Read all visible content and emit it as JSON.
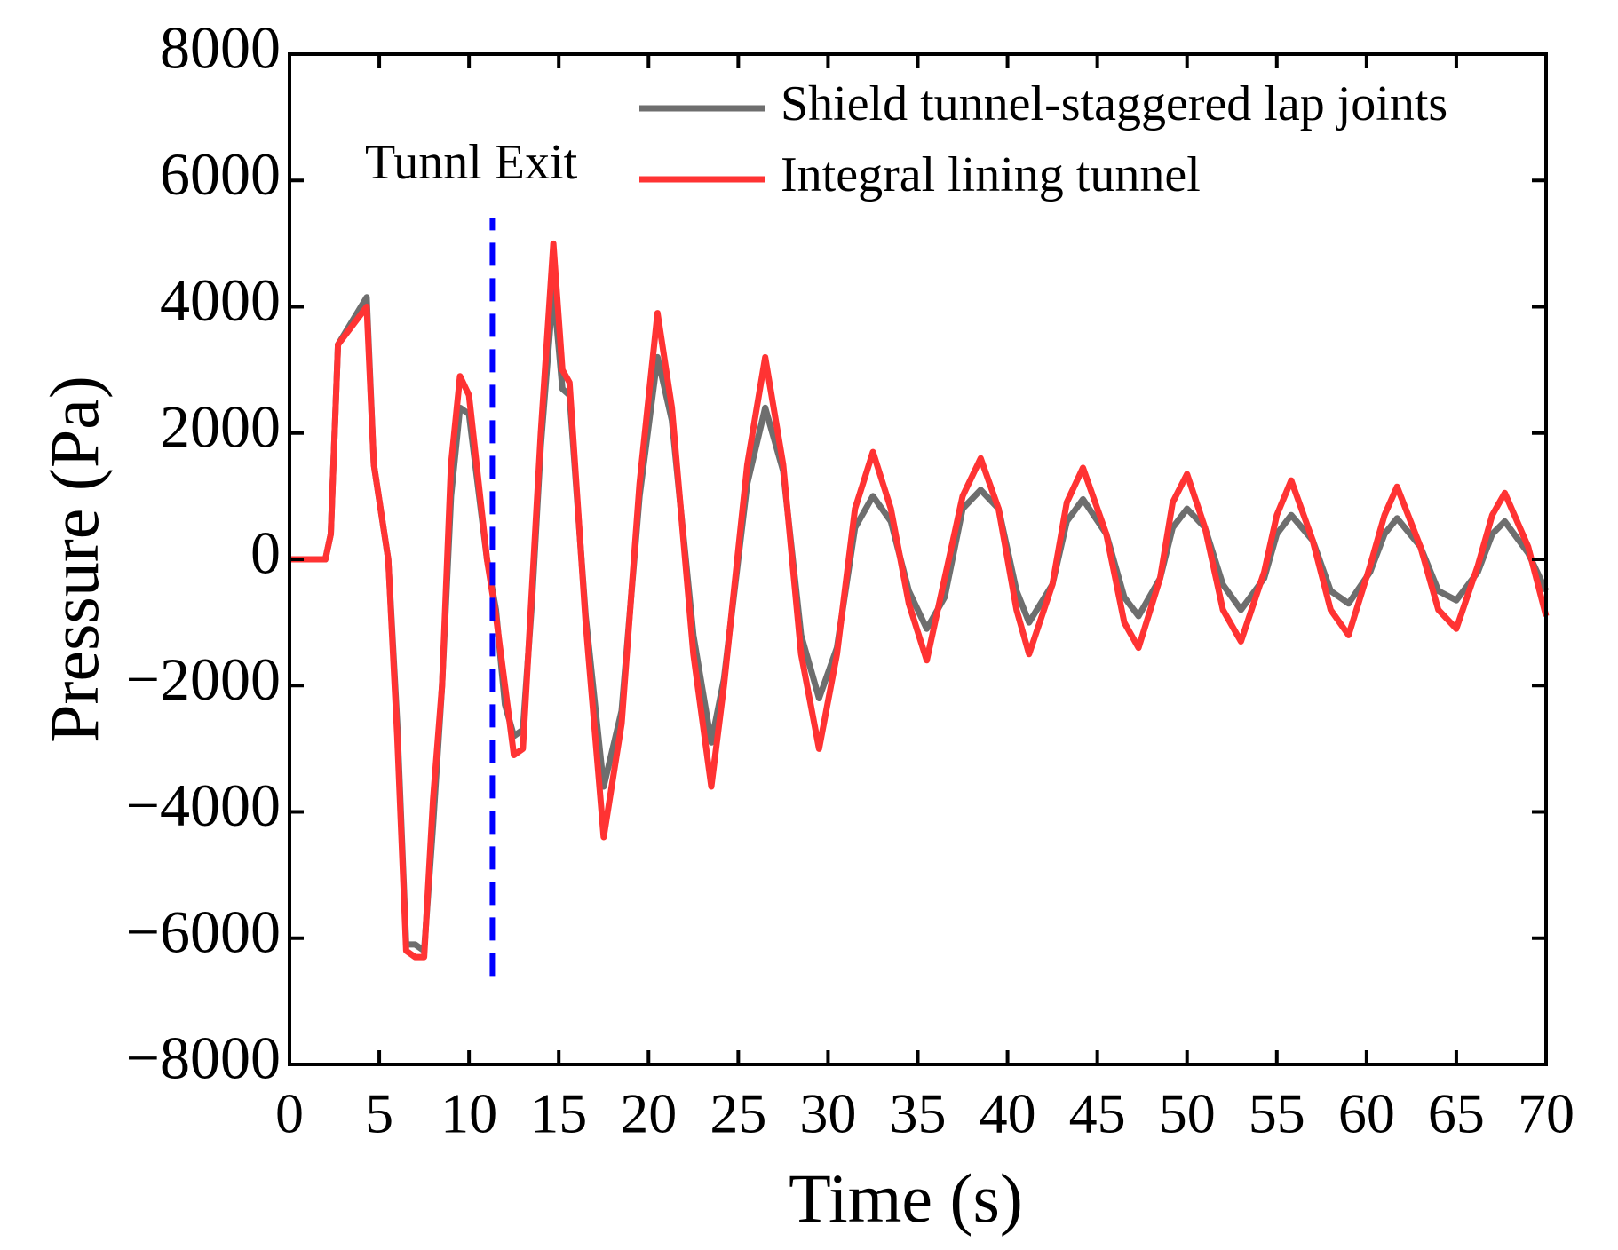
{
  "chart_data": {
    "type": "line",
    "xlabel": "Time (s)",
    "ylabel": "Pressure (Pa)",
    "annotation": {
      "text": "Tunnl Exit",
      "x": 11.3,
      "y_range": [
        -6600,
        5400
      ],
      "color": "#0000ff"
    },
    "legend": "upper right",
    "x": [
      0,
      2,
      2.3,
      2.7,
      4.3,
      4.7,
      5.5,
      6.0,
      6.5,
      7.0,
      7.5,
      8.0,
      8.5,
      9.0,
      9.5,
      10.0,
      11.0,
      11.5,
      12.0,
      12.5,
      13.0,
      13.5,
      14.0,
      14.7,
      15.2,
      15.6,
      16.5,
      17.5,
      18.5,
      19.5,
      20.5,
      21.3,
      22.5,
      23.5,
      24.2,
      25.5,
      26.5,
      27.5,
      28.5,
      29.5,
      30.5,
      31.5,
      32.5,
      33.5,
      34.5,
      35.5,
      36.5,
      37.5,
      38.5,
      39.5,
      40.5,
      41.2,
      42.5,
      43.3,
      44.2,
      45.5,
      46.5,
      47.3,
      48.5,
      49.2,
      50.0,
      51.0,
      52.0,
      53.0,
      54.3,
      55.0,
      55.8,
      57.0,
      58.0,
      59.0,
      60.2,
      61.0,
      61.7,
      63.0,
      64.0,
      65.0,
      66.2,
      67.0,
      67.7,
      69.0,
      70
    ],
    "series": [
      {
        "name": "Shield tunnel-staggered lap joints",
        "color": "#6e6e6e",
        "values": [
          0,
          0,
          400,
          3400,
          4150,
          1500,
          0,
          -2600,
          -6100,
          -6100,
          -6200,
          -4200,
          -2000,
          1000,
          2400,
          2300,
          0,
          -800,
          -2300,
          -2800,
          -2700,
          -700,
          1800,
          4300,
          2700,
          2600,
          -900,
          -3600,
          -2400,
          1000,
          3200,
          2200,
          -1200,
          -2900,
          -1900,
          1200,
          2400,
          1400,
          -1200,
          -2200,
          -1400,
          500,
          1000,
          600,
          -500,
          -1100,
          -600,
          800,
          1100,
          800,
          -500,
          -1000,
          -400,
          600,
          950,
          400,
          -600,
          -900,
          -300,
          500,
          800,
          500,
          -400,
          -800,
          -300,
          400,
          700,
          300,
          -500,
          -700,
          -200,
          400,
          650,
          200,
          -500,
          -650,
          -200,
          400,
          600,
          100,
          -500
        ]
      },
      {
        "name": "Integral lining tunnel",
        "color": "#ff3333",
        "values": [
          0,
          0,
          400,
          3400,
          4000,
          1500,
          0,
          -2800,
          -6200,
          -6300,
          -6300,
          -3800,
          -2000,
          1500,
          2900,
          2600,
          0,
          -900,
          -2000,
          -3100,
          -3000,
          -500,
          2000,
          5000,
          3000,
          2800,
          -1000,
          -4400,
          -2600,
          1200,
          3900,
          2400,
          -1500,
          -3600,
          -2000,
          1500,
          3200,
          1500,
          -1500,
          -3000,
          -1500,
          800,
          1700,
          800,
          -700,
          -1600,
          -300,
          1000,
          1600,
          800,
          -800,
          -1500,
          -400,
          900,
          1450,
          400,
          -1000,
          -1400,
          -300,
          900,
          1350,
          500,
          -800,
          -1300,
          -200,
          700,
          1250,
          300,
          -800,
          -1200,
          -100,
          700,
          1150,
          200,
          -800,
          -1100,
          -100,
          700,
          1050,
          200,
          -900
        ]
      }
    ],
    "xlim": [
      0,
      70
    ],
    "ylim": [
      -8000,
      8000
    ],
    "xticks": [
      0,
      5,
      10,
      15,
      20,
      25,
      30,
      35,
      40,
      45,
      50,
      55,
      60,
      65,
      70
    ],
    "yticks": [
      {
        "value": -8000,
        "label": "−8000"
      },
      {
        "value": -6000,
        "label": "−6000"
      },
      {
        "value": -4000,
        "label": "−4000"
      },
      {
        "value": -2000,
        "label": "−2000"
      },
      0,
      2000,
      4000,
      6000,
      8000
    ]
  }
}
